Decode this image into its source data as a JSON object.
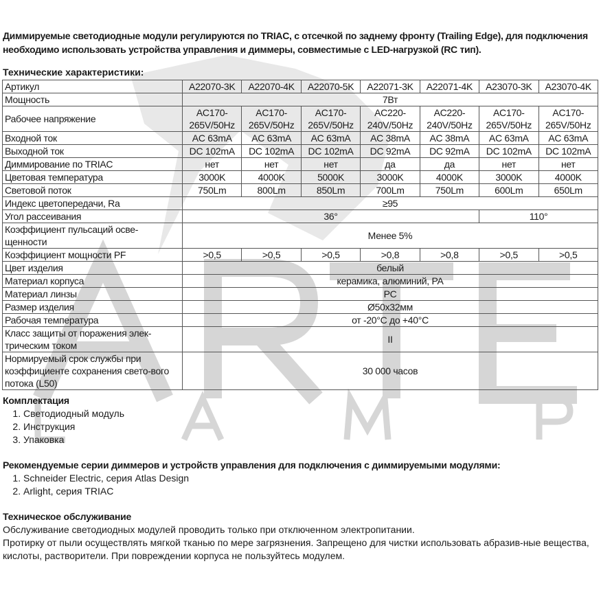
{
  "watermark": {
    "big": [
      "A",
      "R",
      "T",
      "E"
    ],
    "small": [
      "L",
      "A",
      "M",
      "P"
    ]
  },
  "intro": "Диммируемые светодиодные модули регулируются по TRIAC, с отсечкой по заднему фронту (Trailing Edge), для подключения необходимо использовать устройства управления и диммеры, совместимые с LED-нагрузкой (RC тип).",
  "spec_title": "Технические характеристики:",
  "table": [
    {
      "label": "Артикул",
      "cells": [
        {
          "t": "A22070-3K"
        },
        {
          "t": "A22070-4K"
        },
        {
          "t": "A22070-5K"
        },
        {
          "t": "A22071-3K"
        },
        {
          "t": "A22071-4K"
        },
        {
          "t": "A23070-3K"
        },
        {
          "t": "A23070-4K"
        }
      ]
    },
    {
      "label": "Мощность",
      "cells": [
        {
          "t": "7Вт",
          "span": 7
        }
      ]
    },
    {
      "label": "Рабочее напряжение",
      "cells": [
        {
          "t": "AC170-265V/50Hz"
        },
        {
          "t": "AC170-265V/50Hz"
        },
        {
          "t": "AC170-265V/50Hz"
        },
        {
          "t": "AC220-240V/50Hz"
        },
        {
          "t": "AC220-240V/50Hz"
        },
        {
          "t": "AC170-265V/50Hz"
        },
        {
          "t": "AC170-265V/50Hz"
        }
      ]
    },
    {
      "label": "Входной ток",
      "cells": [
        {
          "t": "AC 63mA"
        },
        {
          "t": "AC 63mA"
        },
        {
          "t": "AC 63mA"
        },
        {
          "t": "AC 38mA"
        },
        {
          "t": "AC 38mA"
        },
        {
          "t": "AC 63mA"
        },
        {
          "t": "AC 63mA"
        }
      ]
    },
    {
      "label": "Выходной ток",
      "cells": [
        {
          "t": "DC 102mA"
        },
        {
          "t": "DC 102mA"
        },
        {
          "t": "DC 102mA"
        },
        {
          "t": "DC 92mA"
        },
        {
          "t": "DC 92mA"
        },
        {
          "t": "DC 102mA"
        },
        {
          "t": "DC 102mA"
        }
      ]
    },
    {
      "label": "Диммирование по TRIAC",
      "cells": [
        {
          "t": "нет"
        },
        {
          "t": "нет"
        },
        {
          "t": "нет"
        },
        {
          "t": "да"
        },
        {
          "t": "да"
        },
        {
          "t": "нет"
        },
        {
          "t": "нет"
        }
      ]
    },
    {
      "label": "Цветовая температура",
      "cells": [
        {
          "t": "3000K"
        },
        {
          "t": "4000K"
        },
        {
          "t": "5000K"
        },
        {
          "t": "3000K"
        },
        {
          "t": "4000K"
        },
        {
          "t": "3000K"
        },
        {
          "t": "4000K"
        }
      ]
    },
    {
      "label": "Световой поток",
      "cells": [
        {
          "t": "750Lm"
        },
        {
          "t": "800Lm"
        },
        {
          "t": "850Lm"
        },
        {
          "t": "700Lm"
        },
        {
          "t": "750Lm"
        },
        {
          "t": "600Lm"
        },
        {
          "t": "650Lm"
        }
      ]
    },
    {
      "label": "Индекс цветопередачи, Ra",
      "cells": [
        {
          "t": "≥95",
          "span": 7
        }
      ]
    },
    {
      "label": "Угол рассеивания",
      "cells": [
        {
          "t": "36°",
          "span": 5
        },
        {
          "t": "110°",
          "span": 2
        }
      ]
    },
    {
      "label": "Коэффициент пульсаций осве-щенности",
      "cells": [
        {
          "t": "Менее 5%",
          "span": 7
        }
      ]
    },
    {
      "label": "Коэффициент мощности PF",
      "cells": [
        {
          "t": ">0,5"
        },
        {
          "t": ">0,5"
        },
        {
          "t": ">0,5"
        },
        {
          "t": ">0,8"
        },
        {
          "t": ">0,8"
        },
        {
          "t": ">0,5"
        },
        {
          "t": ">0,5"
        }
      ]
    },
    {
      "label": "Цвет изделия",
      "cells": [
        {
          "t": "белый",
          "span": 7
        }
      ]
    },
    {
      "label": "Материал корпуса",
      "cells": [
        {
          "t": "керамика, алюминий, PA",
          "span": 7
        }
      ]
    },
    {
      "label": "Материал линзы",
      "cells": [
        {
          "t": "PC",
          "span": 7
        }
      ]
    },
    {
      "label": "Размер изделия",
      "cells": [
        {
          "t": "Ø50x32мм",
          "span": 7
        }
      ]
    },
    {
      "label": "Рабочая температура",
      "cells": [
        {
          "t": "от -20°C до +40°C",
          "span": 7
        }
      ]
    },
    {
      "label": "Класс защиты от поражения элек-трическим током",
      "cells": [
        {
          "t": "II",
          "span": 7
        }
      ]
    },
    {
      "label": "Нормируемый срок службы при коэффициенте сохранения свето-вого потока (L50)",
      "cells": [
        {
          "t": "30 000 часов",
          "span": 7
        }
      ]
    }
  ],
  "kit": {
    "title": "Комплектация",
    "items": [
      "Светодиодный модуль",
      "Инструкция",
      "Упаковка"
    ]
  },
  "dimmers": {
    "title": "Рекомендуемые серии диммеров и устройств управления для подключения с диммируемыми модулями:",
    "items": [
      "Schneider Electric, серия Atlas Design",
      "Arlight, серия TRIAC"
    ]
  },
  "service": {
    "title": "Техническое обслуживание",
    "lines": [
      "Обслуживание светодиодных модулей проводить только при отключенном электропитании.",
      "Протирку от пыли осуществлять мягкой тканью по мере загрязнения. Запрещено для чистки использовать абразив-ные вещества, кислоты, растворители. При повреждении корпуса не пользуйтесь модулем."
    ]
  }
}
